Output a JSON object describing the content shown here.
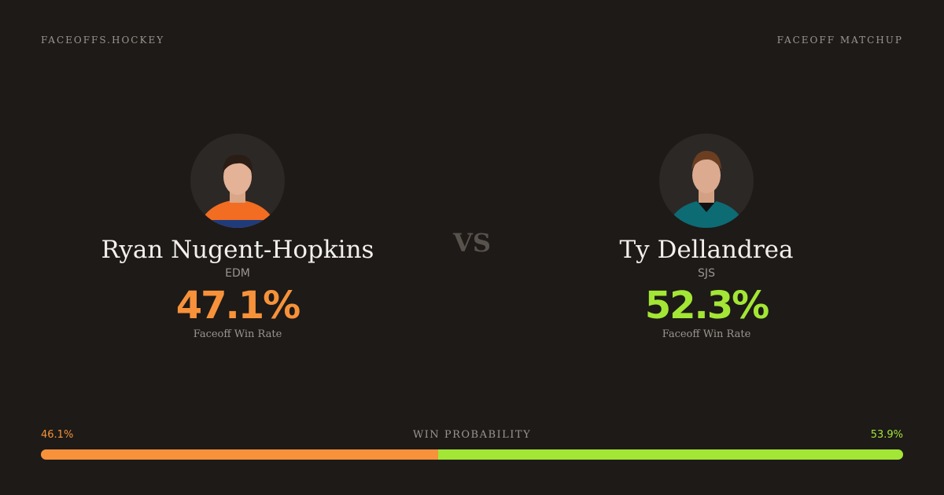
{
  "header": {
    "brand": "FACEOFFS.HOCKEY",
    "label": "FACEOFF MATCHUP"
  },
  "players": [
    {
      "name": "Ryan Nugent-Hopkins",
      "team": "EDM",
      "win_rate": "47.1%",
      "win_rate_label": "Faceoff Win Rate",
      "color": "#f7923a"
    },
    {
      "name": "Ty Dellandrea",
      "team": "SJS",
      "win_rate": "52.3%",
      "win_rate_label": "Faceoff Win Rate",
      "color": "#a3e635"
    }
  ],
  "vs": "VS",
  "probability": {
    "label": "WIN PROBABILITY",
    "values": [
      46.1,
      53.9
    ],
    "value_labels": [
      "46.1%",
      "53.9%"
    ],
    "colors": [
      "#f7923a",
      "#a3e635"
    ]
  }
}
